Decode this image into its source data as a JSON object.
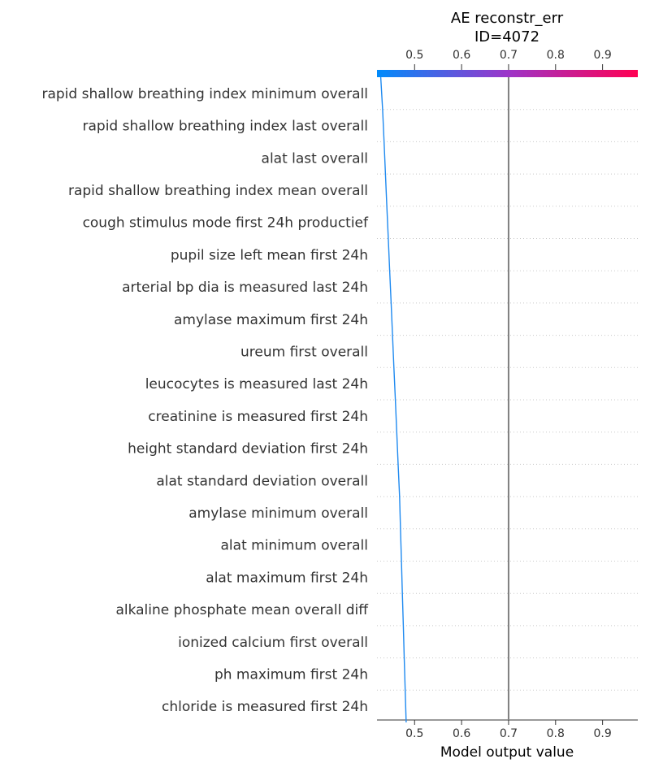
{
  "chart_data": {
    "type": "line",
    "title": "AE reconstr_err",
    "subtitle": "ID=4072",
    "xlabel": "Model output value",
    "xlim": [
      0.42,
      0.975
    ],
    "xticks": [
      0.5,
      0.6,
      0.7,
      0.8,
      0.9
    ],
    "xtick_labels": [
      "0.5",
      "0.6",
      "0.7",
      "0.8",
      "0.9"
    ],
    "base_value": 0.7,
    "grid": "dotted horizontal lines between features",
    "colorbar": {
      "position": "top",
      "from_color": "#008bfb",
      "mid_color": "#9c35c9",
      "to_color": "#ff0052"
    },
    "line_color": "#1f8af0",
    "base_line_color": "#808080",
    "features": [
      "rapid shallow breathing index  minimum  overall",
      "rapid shallow breathing index  last  overall",
      "alat  last  overall",
      "rapid shallow breathing index  mean  overall",
      "cough stimulus  mode  first 24h  productief",
      "pupil size left  mean  first 24h",
      "arterial bp dia  is measured  last 24h",
      "amylase  maximum  first 24h",
      "ureum  first  overall",
      "leucocytes  is measured  last 24h",
      "creatinine  is measured  first 24h",
      "height  standard deviation  first 24h",
      "alat  standard deviation  overall",
      "amylase  minimum  overall",
      "alat  minimum  overall",
      "alat  maximum  first 24h",
      "alkaline phosphate  mean  overall  diff",
      "ionized calcium  first  overall",
      "ph  maximum  first 24h",
      "chloride  is measured  first 24h"
    ],
    "cumulative_values": [
      0.428,
      0.432,
      0.435,
      0.438,
      0.441,
      0.444,
      0.447,
      0.45,
      0.453,
      0.456,
      0.459,
      0.462,
      0.465,
      0.468,
      0.47,
      0.472,
      0.474,
      0.476,
      0.478,
      0.48,
      0.482
    ]
  }
}
